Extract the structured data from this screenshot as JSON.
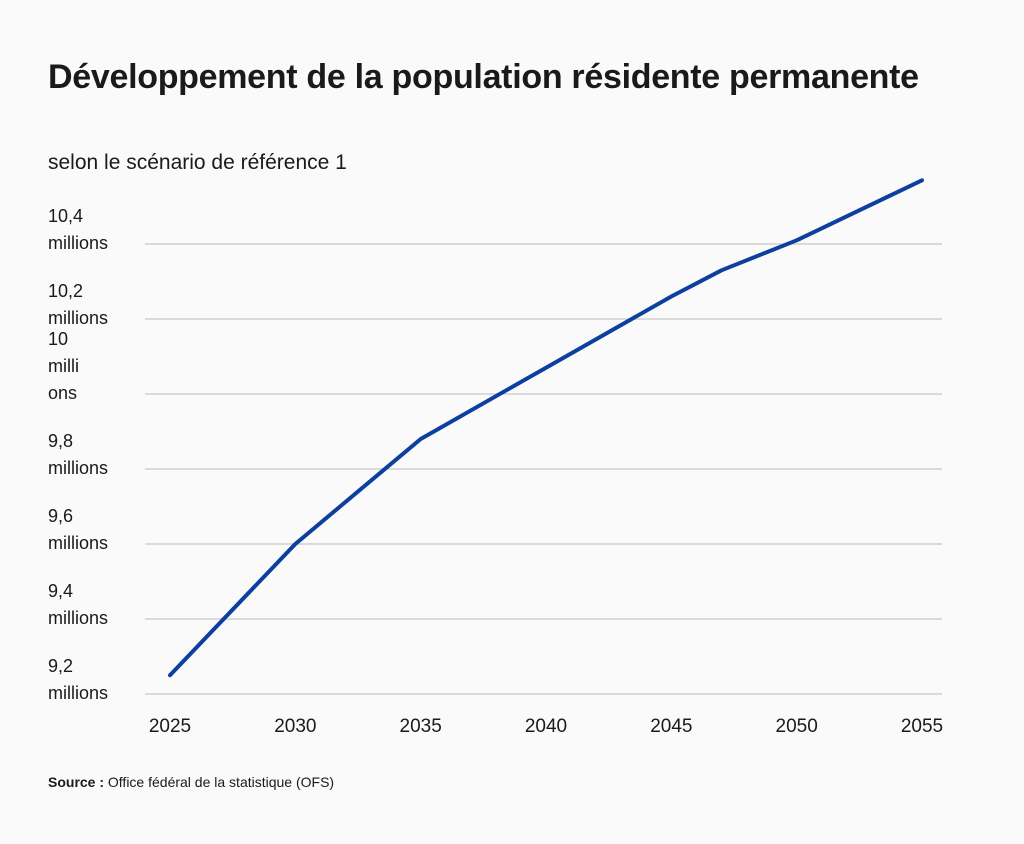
{
  "title": "Développement de la population résidente permanente",
  "subtitle": "selon le scénario de référence 1",
  "source": {
    "label": "Source :",
    "text": "Office fédéral de la statistique (OFS)"
  },
  "colors": {
    "line": "#0d3f9f",
    "grid": "#c8c8c8",
    "text": "#1a1a1a",
    "background": "#fafafa"
  },
  "chart_data": {
    "type": "line",
    "title": "Développement de la population résidente permanente",
    "subtitle": "selon le scénario de référence 1",
    "xlabel": "",
    "ylabel": "",
    "xlim": [
      2025,
      2055
    ],
    "ylim": [
      9.2,
      10.4
    ],
    "grid": true,
    "legend": "none",
    "x_ticks": [
      "2025",
      "2030",
      "2035",
      "2040",
      "2045",
      "2050",
      "2055"
    ],
    "y_ticks": [
      {
        "value": 9.2,
        "label": "9,2\nmillions"
      },
      {
        "value": 9.4,
        "label": "9,4\nmillions"
      },
      {
        "value": 9.6,
        "label": "9,6\nmillions"
      },
      {
        "value": 9.8,
        "label": "9,8\nmillions"
      },
      {
        "value": 10.0,
        "label": "10\nmilli\nons"
      },
      {
        "value": 10.2,
        "label": "10,2\nmillions"
      },
      {
        "value": 10.4,
        "label": "10,4\nmillions"
      }
    ],
    "series": [
      {
        "x": [
          2025,
          2030,
          2035,
          2040,
          2045,
          2047,
          2050,
          2055
        ],
        "values": [
          9.25,
          9.6,
          9.88,
          10.07,
          10.26,
          10.33,
          10.41,
          10.57
        ]
      }
    ]
  }
}
